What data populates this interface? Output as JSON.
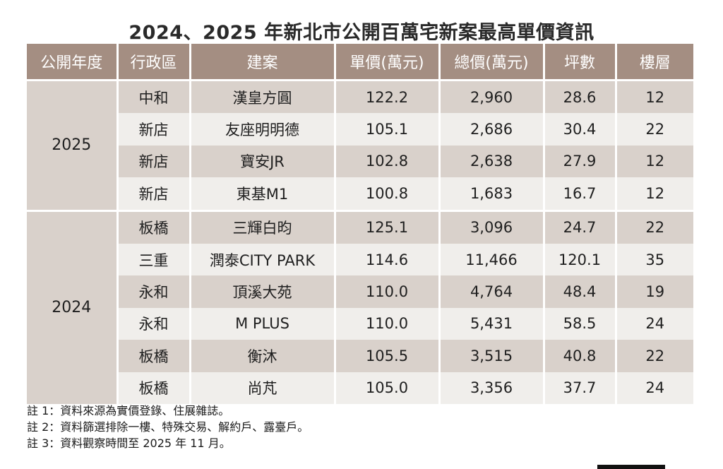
{
  "title": "2024、2025 年新北市公開百萬宅新案最高單價資訊",
  "table": {
    "headers": [
      "公開年度",
      "行政區",
      "建案",
      "單價(萬元)",
      "總價(萬元)",
      "坪數",
      "樓層"
    ],
    "groups": [
      {
        "year": "2025",
        "rows": [
          [
            "中和",
            "漢皇方圓",
            "122.2",
            "2,960",
            "28.6",
            "12"
          ],
          [
            "新店",
            "友座明明德",
            "105.1",
            "2,686",
            "30.4",
            "22"
          ],
          [
            "新店",
            "寶安JR",
            "102.8",
            "2,638",
            "27.9",
            "12"
          ],
          [
            "新店",
            "東基M1",
            "100.8",
            "1,683",
            "16.7",
            "12"
          ]
        ]
      },
      {
        "year": "2024",
        "rows": [
          [
            "板橋",
            "三輝白昀",
            "125.1",
            "3,096",
            "24.7",
            "22"
          ],
          [
            "三重",
            "潤泰CITY PARK",
            "114.6",
            "11,466",
            "120.1",
            "35"
          ],
          [
            "永和",
            "頂溪大苑",
            "110.0",
            "4,764",
            "48.4",
            "19"
          ],
          [
            "永和",
            "M PLUS",
            "110.0",
            "5,431",
            "58.5",
            "24"
          ],
          [
            "板橋",
            "衡沐",
            "105.5",
            "3,515",
            "40.8",
            "22"
          ],
          [
            "板橋",
            "尚芃",
            "105.0",
            "3,356",
            "37.7",
            "24"
          ]
        ]
      }
    ]
  },
  "notes": [
    "註 1：資料來源為實價登錄、住展雜誌。",
    "註 2：資料篩選排除一樓、特殊交易、解約戶、露臺戶。",
    "註 3：資料觀察時間至 2025 年 11 月。"
  ],
  "colors": {
    "header_bg": "#a48e82",
    "row_dark": "#d9d1cb",
    "row_light": "#f0eeeb"
  }
}
